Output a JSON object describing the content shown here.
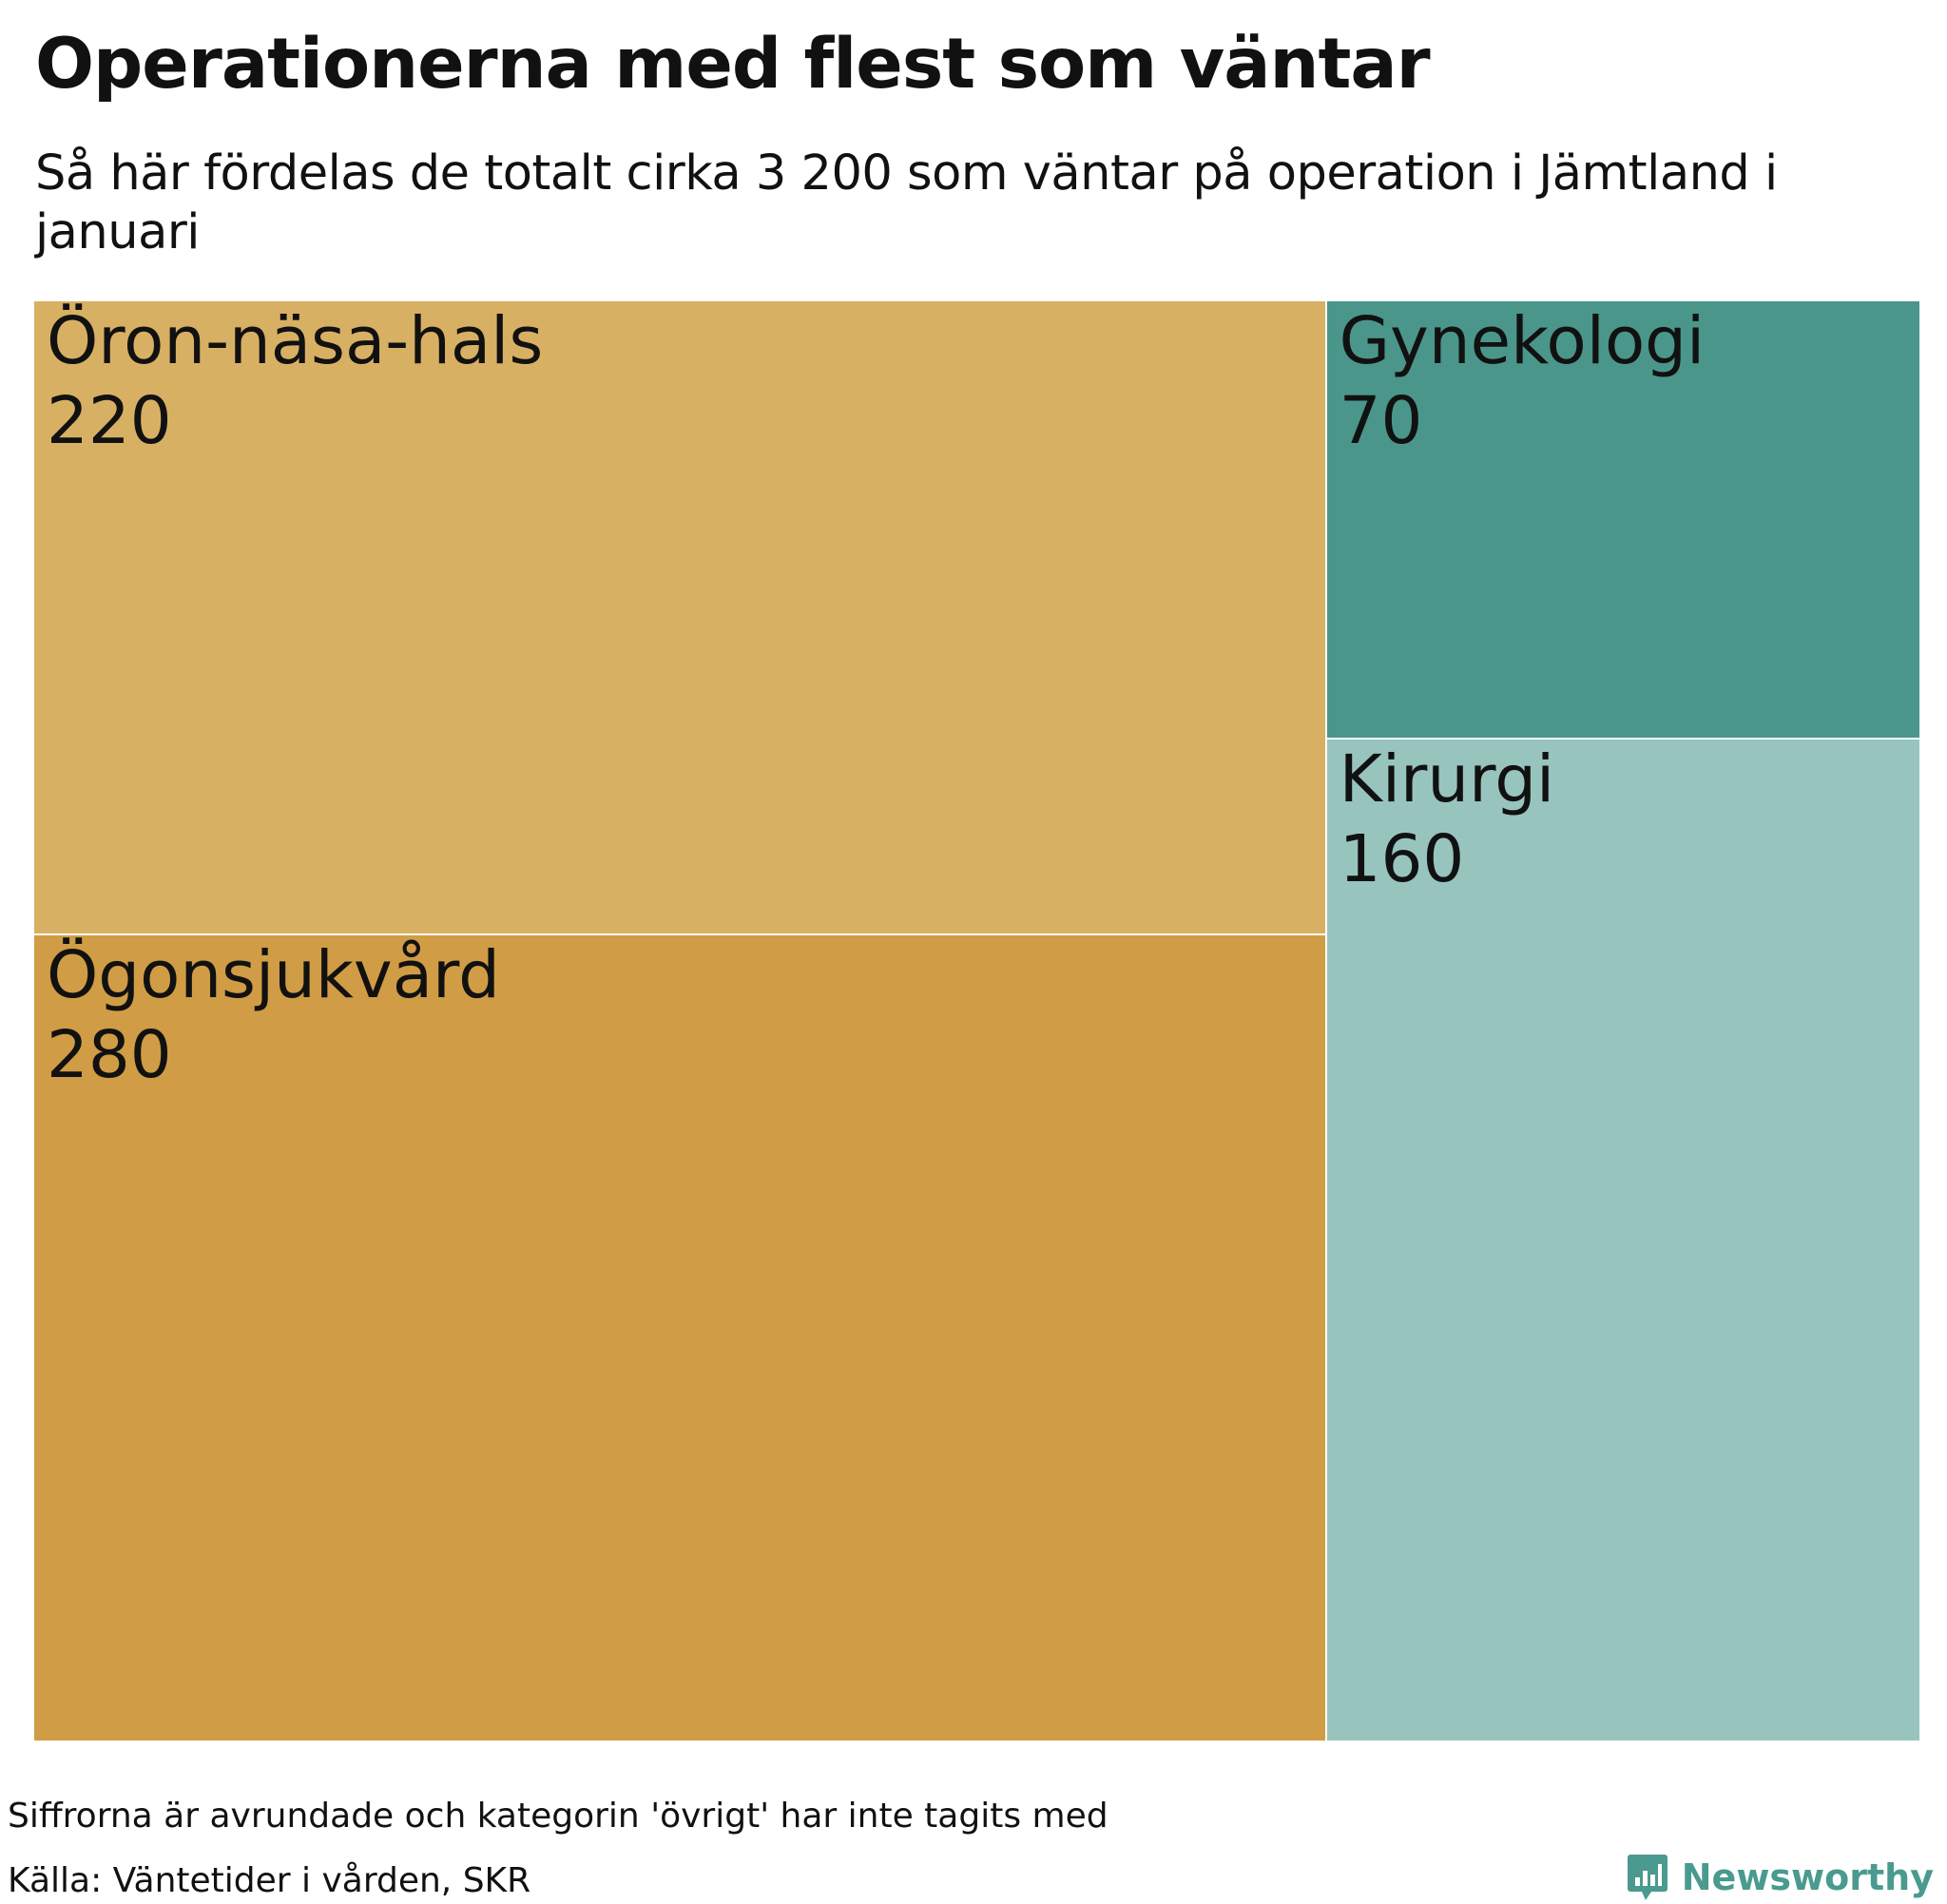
{
  "header": {
    "title": "Operationerna med flest som väntar",
    "subtitle": "Så här fördelas de totalt cirka 3 200 som väntar på operation i Jämtland i januari"
  },
  "chart_data": {
    "type": "treemap",
    "title": "Operationerna med flest som väntar",
    "subtitle": "Så här fördelas de totalt cirka 3 200 som väntar på operation i Jämtland i januari",
    "tiles": [
      {
        "label": "Ögonsjukvård",
        "value": 280,
        "value_text": "280",
        "color": "#d09c45"
      },
      {
        "label": "Öron-näsa-hals",
        "value": 220,
        "value_text": "220",
        "color": "#d8b064"
      },
      {
        "label": "Kirurgi",
        "value": 160,
        "value_text": "160",
        "color": "#98c4be"
      },
      {
        "label": "Gynekologi",
        "value": 70,
        "value_text": "70",
        "color": "#4a968a"
      }
    ]
  },
  "footer": {
    "note": "Siffrorna är avrundade och kategorin 'övrigt' har inte tagits med",
    "source": "Källa: Väntetider i vården, SKR",
    "brand": "Newsworthy",
    "brand_color": "#4a9a8f"
  }
}
